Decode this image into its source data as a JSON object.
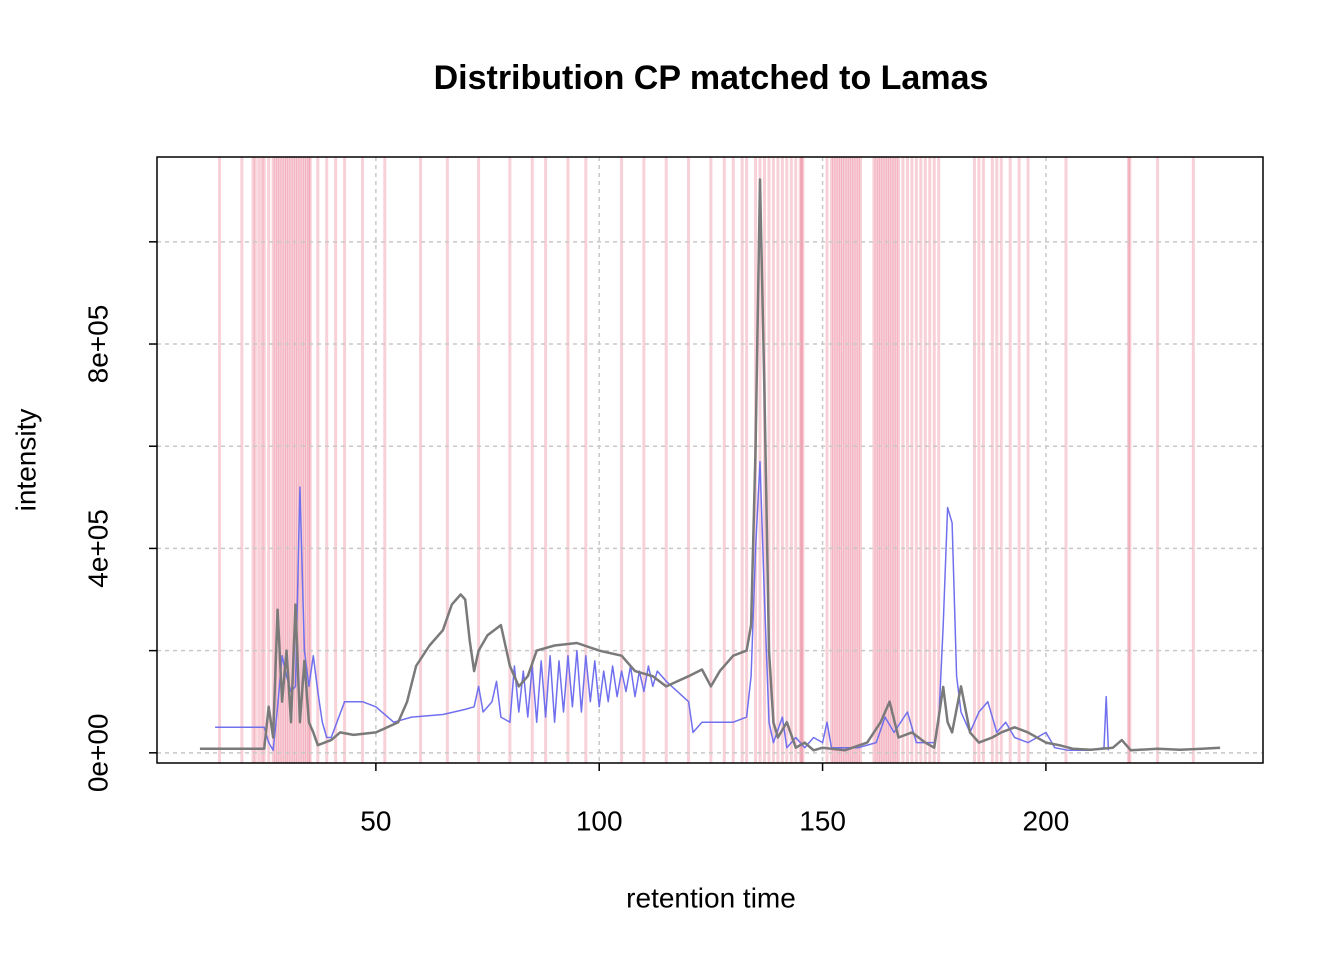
{
  "chart_data": {
    "type": "line",
    "title": "Distribution CP matched to Lamas",
    "x_label": "retention time",
    "y_label": "intensity",
    "xlim": [
      1,
      248.6
    ],
    "ylim": [
      -19900,
      1166000
    ],
    "xticks": [
      50,
      100,
      150,
      200
    ],
    "yticks": [
      {
        "value": 0,
        "label": "0e+00"
      },
      {
        "value": 400000,
        "label": "4e+05"
      },
      {
        "value": 800000,
        "label": "8e+05"
      }
    ],
    "yticks_minor": [
      200000,
      600000,
      1000000
    ],
    "grid": true,
    "vline_color": "#dc143c",
    "vline_opacity": 0.2,
    "vlines": [
      15,
      20,
      22.5,
      23,
      23.8,
      24.5,
      25,
      26,
      27,
      27.5,
      28,
      28.5,
      29,
      29.5,
      30,
      30.5,
      31,
      31.5,
      32,
      32.5,
      33,
      33.5,
      34,
      34.5,
      35,
      35.3,
      37,
      39,
      41,
      43,
      47,
      52,
      60,
      66,
      73,
      80,
      85,
      88,
      93,
      97,
      105,
      110,
      115,
      120,
      125,
      128,
      130,
      132,
      133,
      135,
      136,
      137,
      138,
      139,
      140,
      141,
      142,
      143,
      144,
      145,
      145.3,
      145.6,
      151,
      152,
      152.5,
      153,
      153.5,
      154,
      154.5,
      155,
      155.5,
      156,
      156.5,
      157,
      157.5,
      158,
      158.5,
      161.5,
      162,
      162.5,
      163,
      163.5,
      164,
      164.5,
      165,
      165.5,
      166,
      166.5,
      167,
      168,
      169,
      170,
      171,
      172,
      173,
      174,
      175,
      176,
      184,
      185,
      186,
      188,
      189,
      190,
      192,
      194,
      196,
      204.5,
      218.5,
      218.8,
      225,
      233
    ],
    "series": [
      {
        "color": "#7070ee",
        "width": 1.5,
        "x": [
          14,
          25,
          26,
          27,
          28,
          29,
          30,
          31,
          32,
          33,
          34,
          35,
          36,
          37,
          38,
          39,
          40,
          43,
          47,
          50,
          54,
          58,
          65,
          70,
          72,
          73,
          74,
          76,
          77,
          78,
          80,
          81,
          82,
          83,
          84,
          85,
          86,
          87,
          88,
          89,
          90,
          91,
          92,
          93,
          94,
          95,
          96,
          97,
          98,
          99,
          100,
          101,
          102,
          103,
          104,
          105,
          106,
          107,
          108,
          109,
          110,
          111,
          112,
          113,
          115,
          120,
          121,
          123,
          130,
          133,
          134,
          135,
          136,
          137,
          138,
          139,
          141,
          142,
          144,
          146,
          148,
          150,
          151,
          152,
          158,
          162,
          164,
          166,
          169,
          171,
          175,
          176,
          177,
          178,
          179,
          180,
          181,
          183,
          185,
          187,
          189,
          191,
          193,
          196,
          200,
          202,
          205,
          210,
          213,
          213.5,
          214
        ],
        "values": [
          50000,
          50000,
          20000,
          5000,
          90000,
          190000,
          150000,
          120000,
          130000,
          520000,
          200000,
          130000,
          190000,
          120000,
          60000,
          30000,
          30000,
          100000,
          100000,
          90000,
          60000,
          70000,
          75000,
          85000,
          90000,
          130000,
          80000,
          100000,
          140000,
          70000,
          60000,
          170000,
          80000,
          160000,
          70000,
          170000,
          60000,
          180000,
          70000,
          190000,
          60000,
          180000,
          80000,
          190000,
          90000,
          200000,
          80000,
          190000,
          100000,
          180000,
          90000,
          160000,
          100000,
          170000,
          110000,
          160000,
          120000,
          170000,
          110000,
          160000,
          120000,
          170000,
          130000,
          160000,
          140000,
          100000,
          40000,
          60000,
          60000,
          70000,
          150000,
          400000,
          570000,
          300000,
          60000,
          20000,
          70000,
          10000,
          30000,
          10000,
          30000,
          20000,
          60000,
          10000,
          10000,
          20000,
          70000,
          40000,
          80000,
          20000,
          20000,
          60000,
          250000,
          480000,
          450000,
          150000,
          80000,
          40000,
          80000,
          100000,
          40000,
          60000,
          30000,
          20000,
          40000,
          10000,
          5000,
          5000,
          10000,
          110000,
          5000
        ]
      },
      {
        "color": "#7a7a7a",
        "width": 2.5,
        "x": [
          10.6,
          25,
          26,
          27,
          28,
          29,
          30,
          31,
          32,
          33,
          34,
          35,
          36,
          37,
          40,
          42,
          45,
          50,
          55,
          57,
          59,
          62,
          65,
          67,
          69,
          70,
          71,
          72,
          73,
          75,
          78,
          80,
          82,
          84,
          86,
          90,
          95,
          100,
          105,
          108,
          112,
          115,
          120,
          123,
          125,
          127,
          130,
          133,
          134,
          135,
          136,
          137,
          138,
          139,
          140,
          142,
          144,
          146,
          148,
          150,
          155,
          160,
          163,
          165,
          167,
          170,
          173,
          175,
          177,
          178,
          179,
          181,
          183,
          185,
          188,
          190,
          193,
          196,
          200,
          203,
          206,
          210,
          215,
          217,
          219,
          225,
          230,
          235,
          239
        ],
        "values": [
          8000,
          8000,
          90000,
          30000,
          280000,
          100000,
          200000,
          60000,
          290000,
          60000,
          180000,
          60000,
          40000,
          15000,
          25000,
          40000,
          35000,
          40000,
          60000,
          100000,
          170000,
          210000,
          240000,
          290000,
          310000,
          300000,
          220000,
          160000,
          200000,
          230000,
          250000,
          170000,
          130000,
          150000,
          200000,
          210000,
          215000,
          200000,
          190000,
          160000,
          150000,
          130000,
          150000,
          163000,
          130000,
          160000,
          190000,
          200000,
          250000,
          600000,
          1122000,
          700000,
          200000,
          60000,
          30000,
          60000,
          10000,
          20000,
          5000,
          10000,
          5000,
          20000,
          60000,
          100000,
          30000,
          40000,
          20000,
          10000,
          129000,
          60000,
          40000,
          130000,
          40000,
          20000,
          30000,
          40000,
          50000,
          40000,
          20000,
          15000,
          8000,
          6000,
          10000,
          25000,
          5000,
          8000,
          6000,
          8000,
          10000
        ]
      }
    ]
  }
}
